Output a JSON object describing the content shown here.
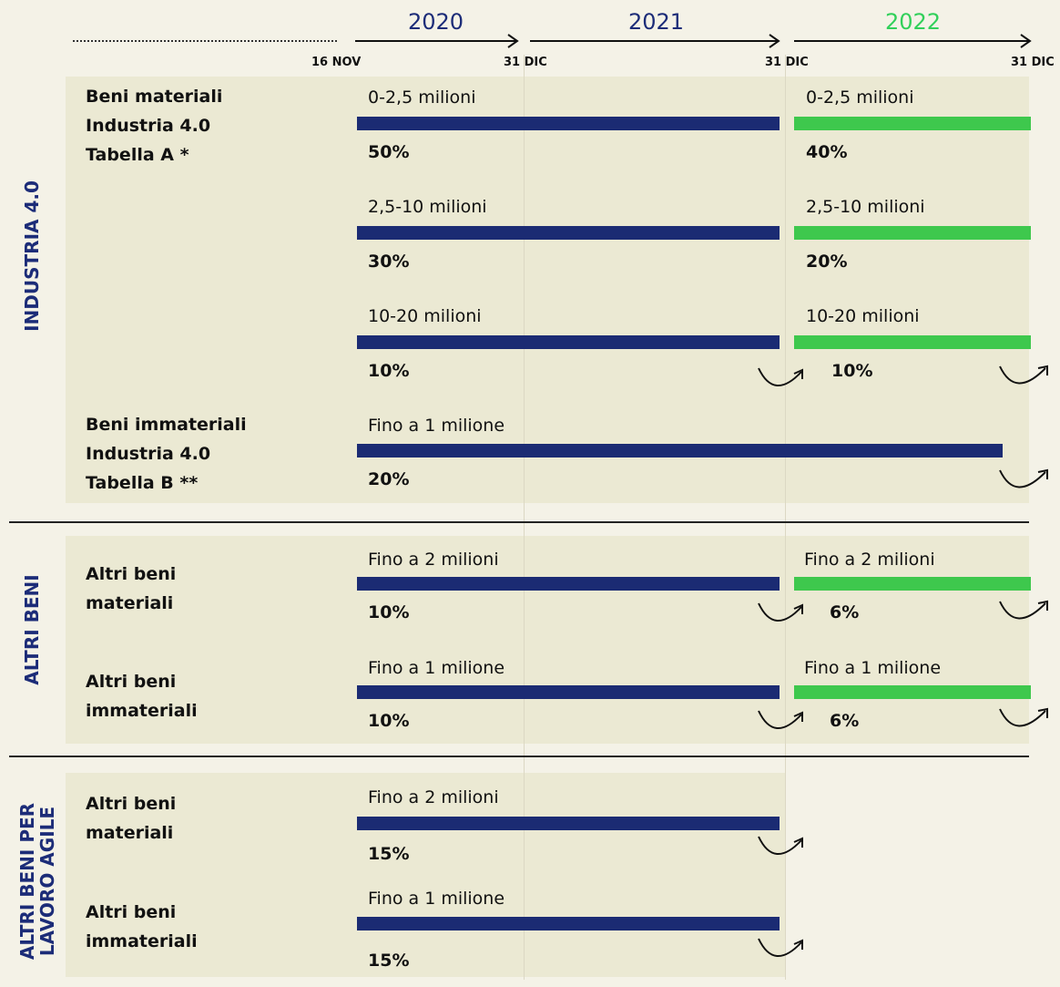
{
  "colors": {
    "year_2020": "#1c2c78",
    "year_2021": "#1c2c78",
    "year_2022": "#31d05a",
    "navy_bar": "#1b2b73",
    "green_bar": "#3ec84d",
    "section_label": "#1c2c78"
  },
  "timeline": {
    "years": [
      "2020",
      "2021",
      "2022"
    ],
    "ticks": [
      "16 NOV",
      "31 DIC",
      "31 DIC",
      "31 DIC"
    ]
  },
  "sections": {
    "industria": "INDUSTRIA 4.0",
    "altri": "ALTRI BENI",
    "agile": "ALTRI BENI PER\nLAVORO AGILE"
  },
  "categories": {
    "beni_materiali": [
      "Beni materiali",
      "Industria 4.0",
      "Tabella A *"
    ],
    "beni_immateriali": [
      "Beni immateriali",
      "Industria 4.0",
      "Tabella B **"
    ],
    "altri_materiali": [
      "Altri beni",
      "materiali"
    ],
    "altri_immateriali": [
      "Altri beni",
      "immateriali"
    ],
    "agile_materiali": [
      "Altri beni",
      "materiali"
    ],
    "agile_immateriali": [
      "Altri beni",
      "immateriali"
    ]
  },
  "chart_data": {
    "type": "timeline",
    "periods": [
      {
        "name": "2020-2021",
        "from": "16 NOV 2020",
        "to": "31 DIC 2021"
      },
      {
        "name": "2022",
        "from": "31 DIC 2021",
        "to": "31 DIC 2022"
      }
    ],
    "rows": [
      {
        "section": "INDUSTRIA 4.0",
        "category": "Beni materiali Industria 4.0 Tabella A *",
        "range": "0-2,5 milioni",
        "rate_2020_2021": "50%",
        "range_2022": "0-2,5 milioni",
        "rate_2022": "40%"
      },
      {
        "section": "INDUSTRIA 4.0",
        "category": "Beni materiali Industria 4.0 Tabella A *",
        "range": "2,5-10 milioni",
        "rate_2020_2021": "30%",
        "range_2022": "2,5-10 milioni",
        "rate_2022": "20%"
      },
      {
        "section": "INDUSTRIA 4.0",
        "category": "Beni materiali Industria 4.0 Tabella A *",
        "range": "10-20 milioni",
        "rate_2020_2021": "10%",
        "range_2022": "10-20 milioni",
        "rate_2022": "10%"
      },
      {
        "section": "INDUSTRIA 4.0",
        "category": "Beni immateriali Industria 4.0 Tabella B **",
        "range": "Fino a 1 milione",
        "rate_2020_2022": "20%"
      },
      {
        "section": "ALTRI BENI",
        "category": "Altri beni materiali",
        "range": "Fino a 2 milioni",
        "rate_2020_2021": "10%",
        "range_2022": "Fino a 2 milioni",
        "rate_2022": "6%"
      },
      {
        "section": "ALTRI BENI",
        "category": "Altri beni immateriali",
        "range": "Fino a 1 milione",
        "rate_2020_2021": "10%",
        "range_2022": "Fino a 1 milione",
        "rate_2022": "6%"
      },
      {
        "section": "ALTRI BENI PER LAVORO AGILE",
        "category": "Altri beni materiali",
        "range": "Fino a 2 milioni",
        "rate_2020_2021": "15%"
      },
      {
        "section": "ALTRI BENI PER LAVORO AGILE",
        "category": "Altri beni immateriali",
        "range": "Fino a 1 milione",
        "rate_2020_2021": "15%"
      }
    ]
  },
  "rows": {
    "r1": {
      "label_a": "0-2,5 milioni",
      "pct_a": "50%",
      "label_b": "0-2,5 milioni",
      "pct_b": "40%"
    },
    "r2": {
      "label_a": "2,5-10 milioni",
      "pct_a": "30%",
      "label_b": "2,5-10 milioni",
      "pct_b": "20%"
    },
    "r3": {
      "label_a": "10-20 milioni",
      "pct_a": "10%",
      "label_b": "10-20 milioni",
      "pct_b": "10%"
    },
    "r4": {
      "label_a": "Fino a 1 milione",
      "pct_a": "20%"
    },
    "r5": {
      "label_a": "Fino a 2 milioni",
      "pct_a": "10%",
      "label_b": "Fino a 2 milioni",
      "pct_b": "6%"
    },
    "r6": {
      "label_a": "Fino a 1 milione",
      "pct_a": "10%",
      "label_b": "Fino a 1 milione",
      "pct_b": "6%"
    },
    "r7": {
      "label_a": "Fino a 2 milioni",
      "pct_a": "15%"
    },
    "r8": {
      "label_a": "Fino a 1 milione",
      "pct_a": "15%"
    }
  }
}
